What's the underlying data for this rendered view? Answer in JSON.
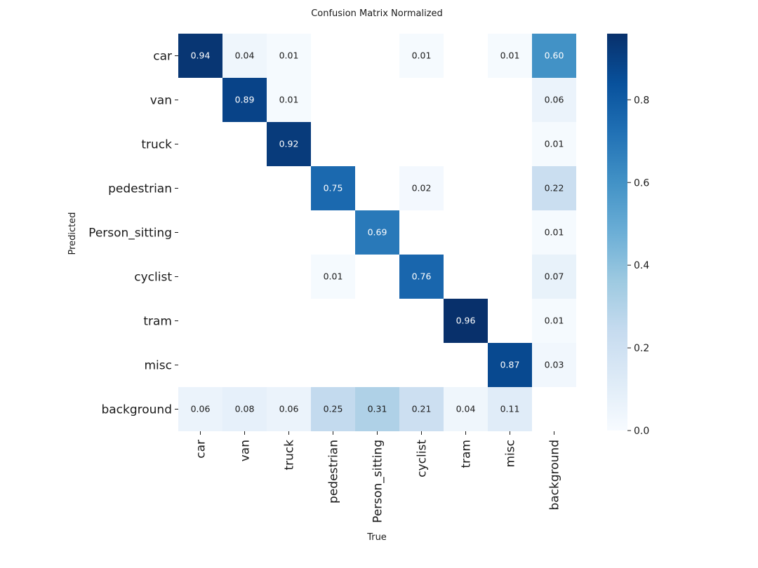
{
  "chart_data": {
    "type": "heatmap",
    "title": "Confusion Matrix Normalized",
    "xlabel": "True",
    "ylabel": "Predicted",
    "x_categories": [
      "car",
      "van",
      "truck",
      "pedestrian",
      "Person_sitting",
      "cyclist",
      "tram",
      "misc",
      "background"
    ],
    "y_categories": [
      "car",
      "van",
      "truck",
      "pedestrian",
      "Person_sitting",
      "cyclist",
      "tram",
      "misc",
      "background"
    ],
    "values": [
      [
        0.94,
        0.04,
        0.01,
        null,
        null,
        0.01,
        null,
        0.01,
        0.6
      ],
      [
        null,
        0.89,
        0.01,
        null,
        null,
        null,
        null,
        null,
        0.06
      ],
      [
        null,
        null,
        0.92,
        null,
        null,
        null,
        null,
        null,
        0.01
      ],
      [
        null,
        null,
        null,
        0.75,
        null,
        0.02,
        null,
        null,
        0.22
      ],
      [
        null,
        null,
        null,
        null,
        0.69,
        null,
        null,
        null,
        0.01
      ],
      [
        null,
        null,
        null,
        0.01,
        null,
        0.76,
        null,
        null,
        0.07
      ],
      [
        null,
        null,
        null,
        null,
        null,
        null,
        0.96,
        null,
        0.01
      ],
      [
        null,
        null,
        null,
        null,
        null,
        null,
        null,
        0.87,
        0.03
      ],
      [
        0.06,
        0.08,
        0.06,
        0.25,
        0.31,
        0.21,
        0.04,
        0.11,
        null
      ]
    ],
    "colorbar": {
      "range": [
        0,
        0.96
      ],
      "ticks": [
        0.0,
        0.2,
        0.4,
        0.6,
        0.8
      ],
      "tick_labels": [
        "0.0",
        "0.2",
        "0.4",
        "0.6",
        "0.8"
      ],
      "colormap": "Blues"
    }
  }
}
